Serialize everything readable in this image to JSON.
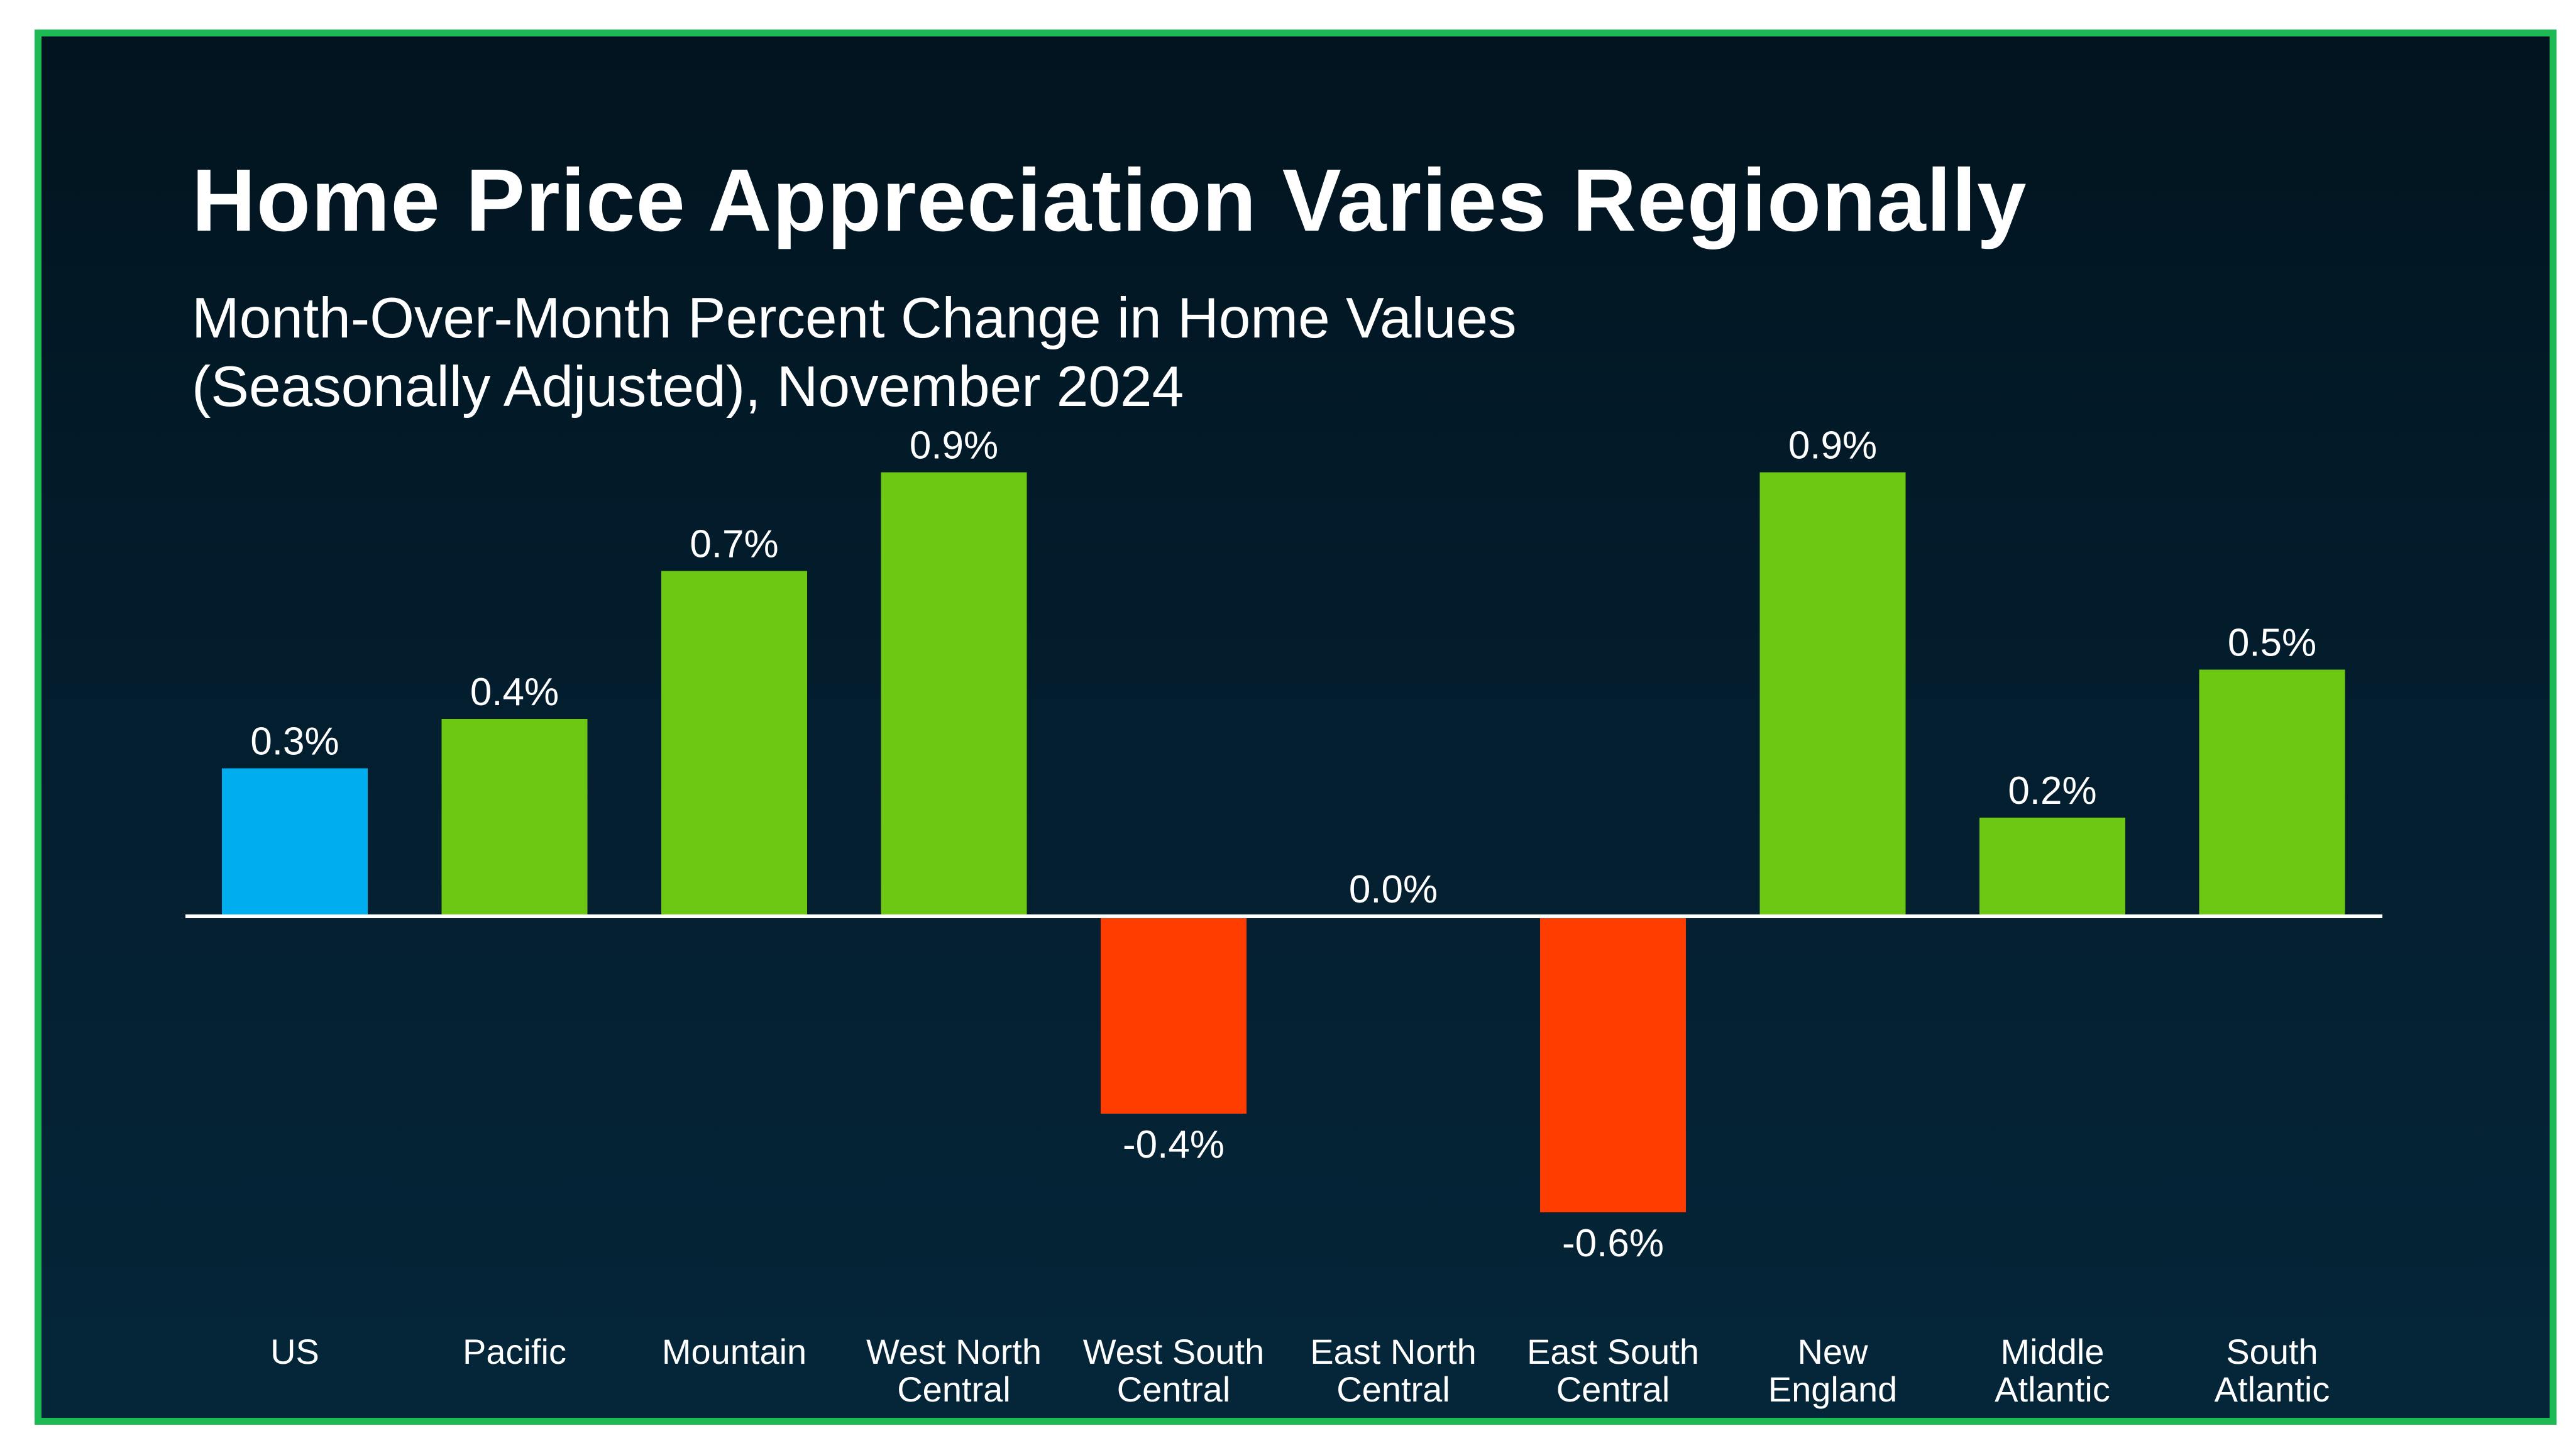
{
  "slide": {
    "title": "Home Price Appreciation Varies Regionally",
    "subtitle_line1": "Month-Over-Month Percent Change in Home Values",
    "subtitle_line2": "(Seasonally Adjusted), November 2024"
  },
  "colors": {
    "frame_border": "#1DB954",
    "background": "#031D2D",
    "us_bar": "#00AEEF",
    "positive_bar": "#6CC812",
    "negative_bar": "#FF3D00",
    "axis_line": "#FFFFFF",
    "text": "#FFFFFF"
  },
  "chart_data": {
    "type": "bar",
    "title": "Home Price Appreciation Varies Regionally",
    "subtitle": "Month-Over-Month Percent Change in Home Values (Seasonally Adjusted), November 2024",
    "xlabel": "",
    "ylabel": "",
    "categories": [
      [
        "US"
      ],
      [
        "Pacific"
      ],
      [
        "Mountain"
      ],
      [
        "West North",
        "Central"
      ],
      [
        "West South",
        "Central"
      ],
      [
        "East North",
        "Central"
      ],
      [
        "East South",
        "Central"
      ],
      [
        "New",
        "England"
      ],
      [
        "Middle",
        "Atlantic"
      ],
      [
        "South",
        "Atlantic"
      ]
    ],
    "values": [
      0.3,
      0.4,
      0.7,
      0.9,
      -0.4,
      0.0,
      -0.6,
      0.9,
      0.2,
      0.5
    ],
    "value_labels": [
      "0.3%",
      "0.4%",
      "0.7%",
      "0.9%",
      "-0.4%",
      "0.0%",
      "-0.6%",
      "0.9%",
      "0.2%",
      "0.5%"
    ],
    "unit": "%",
    "ylim": [
      -0.6,
      0.9
    ],
    "grid": false,
    "legend": "none",
    "zero_line": true
  }
}
